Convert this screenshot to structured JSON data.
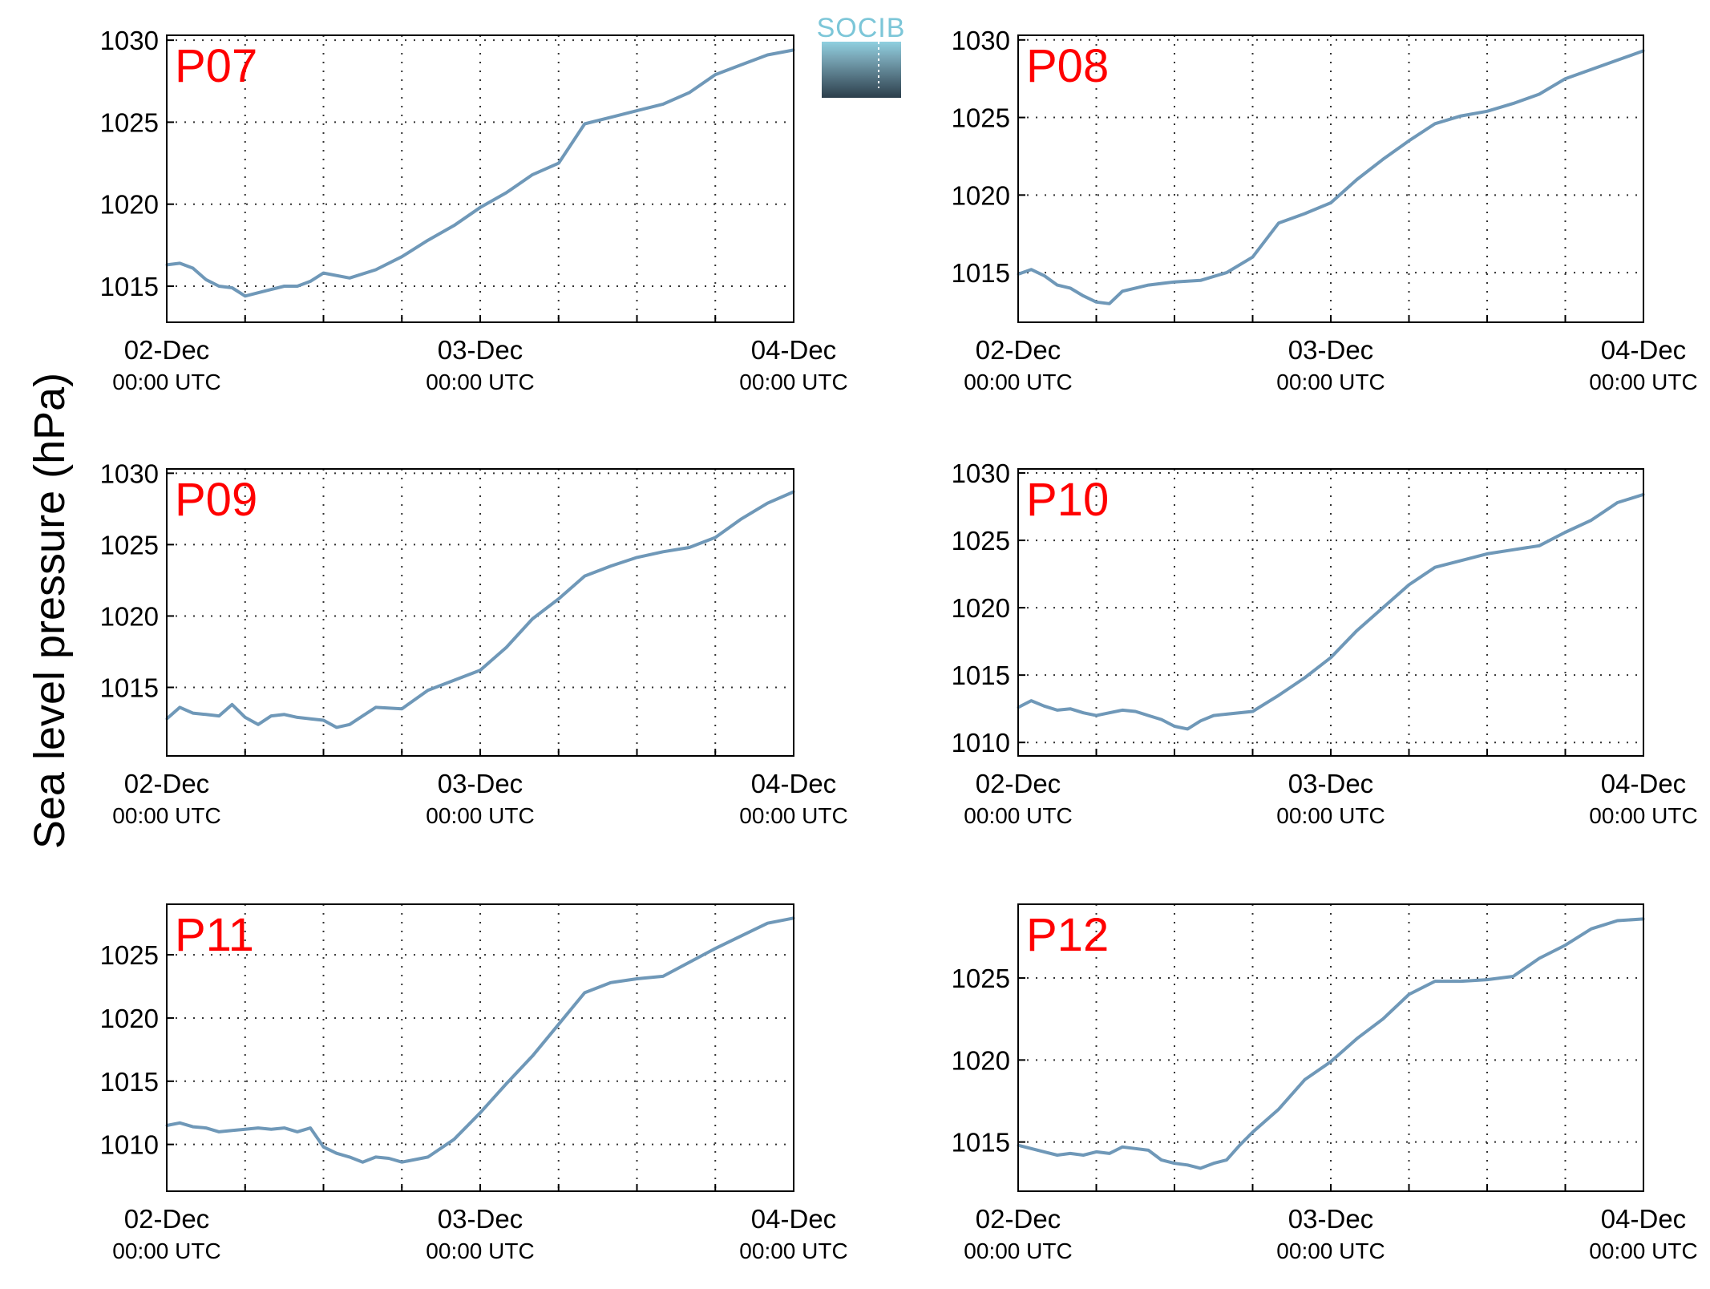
{
  "figure": {
    "ylabel": "Sea level pressure (hPa)",
    "logo_text": "SOCIB",
    "line_color": "#6f98b8",
    "panel_label_color": "#ff0000"
  },
  "chart_data": [
    {
      "type": "line",
      "panel_label": "P07",
      "x_ticks": [
        {
          "line1": "02-Dec",
          "line2": "00:00 UTC"
        },
        {
          "line1": "03-Dec",
          "line2": "00:00 UTC"
        },
        {
          "line1": "04-Dec",
          "line2": "00:00 UTC"
        }
      ],
      "x_range_hours": [
        0,
        48
      ],
      "y_ticks": [
        1015,
        1020,
        1025,
        1030
      ],
      "ylim": [
        1012.8,
        1030.3
      ],
      "grid": true,
      "series": [
        {
          "x_hours": [
            0,
            1,
            2,
            3,
            4,
            5,
            6,
            7,
            8,
            9,
            10,
            11,
            12,
            14,
            16,
            18,
            20,
            22,
            24,
            26,
            28,
            30,
            32,
            34,
            36,
            38,
            40,
            42,
            44,
            46,
            48
          ],
          "values": [
            1016.3,
            1016.4,
            1016.1,
            1015.4,
            1015.0,
            1014.9,
            1014.4,
            1014.6,
            1014.8,
            1015.0,
            1015.0,
            1015.3,
            1015.8,
            1015.5,
            1016.0,
            1016.8,
            1017.8,
            1018.7,
            1019.8,
            1020.7,
            1021.8,
            1022.5,
            1024.9,
            1025.3,
            1025.7,
            1026.1,
            1026.8,
            1027.9,
            1028.5,
            1029.1,
            1029.4
          ]
        }
      ]
    },
    {
      "type": "line",
      "panel_label": "P08",
      "x_ticks": [
        {
          "line1": "02-Dec",
          "line2": "00:00 UTC"
        },
        {
          "line1": "03-Dec",
          "line2": "00:00 UTC"
        },
        {
          "line1": "04-Dec",
          "line2": "00:00 UTC"
        }
      ],
      "x_range_hours": [
        0,
        48
      ],
      "y_ticks": [
        1015,
        1020,
        1025,
        1030
      ],
      "ylim": [
        1011.8,
        1030.3
      ],
      "grid": true,
      "series": [
        {
          "x_hours": [
            0,
            1,
            2,
            3,
            4,
            5,
            6,
            7,
            8,
            9,
            10,
            11,
            12,
            14,
            16,
            18,
            20,
            22,
            24,
            26,
            28,
            30,
            32,
            34,
            36,
            38,
            40,
            42,
            44,
            46,
            48
          ],
          "values": [
            1014.9,
            1015.2,
            1014.8,
            1014.2,
            1014.0,
            1013.5,
            1013.1,
            1013.0,
            1013.8,
            1014.0,
            1014.2,
            1014.3,
            1014.4,
            1014.5,
            1015.0,
            1016.0,
            1018.2,
            1018.8,
            1019.5,
            1021.0,
            1022.3,
            1023.5,
            1024.6,
            1025.1,
            1025.4,
            1025.9,
            1026.5,
            1027.5,
            1028.1,
            1028.7,
            1029.3
          ]
        }
      ]
    },
    {
      "type": "line",
      "panel_label": "P09",
      "x_ticks": [
        {
          "line1": "02-Dec",
          "line2": "00:00 UTC"
        },
        {
          "line1": "03-Dec",
          "line2": "00:00 UTC"
        },
        {
          "line1": "04-Dec",
          "line2": "00:00 UTC"
        }
      ],
      "x_range_hours": [
        0,
        48
      ],
      "y_ticks": [
        1015,
        1020,
        1025,
        1030
      ],
      "ylim": [
        1010.2,
        1030.3
      ],
      "grid": true,
      "series": [
        {
          "x_hours": [
            0,
            1,
            2,
            3,
            4,
            5,
            6,
            7,
            8,
            9,
            10,
            11,
            12,
            13,
            14,
            15,
            16,
            18,
            20,
            22,
            24,
            26,
            28,
            30,
            32,
            34,
            36,
            38,
            40,
            42,
            44,
            46,
            48
          ],
          "values": [
            1012.8,
            1013.6,
            1013.2,
            1013.1,
            1013.0,
            1013.8,
            1012.9,
            1012.4,
            1013.0,
            1013.1,
            1012.9,
            1012.8,
            1012.7,
            1012.2,
            1012.4,
            1013.0,
            1013.6,
            1013.5,
            1014.8,
            1015.5,
            1016.2,
            1017.8,
            1019.8,
            1021.2,
            1022.8,
            1023.5,
            1024.1,
            1024.5,
            1024.8,
            1025.5,
            1026.8,
            1027.9,
            1028.7
          ]
        }
      ]
    },
    {
      "type": "line",
      "panel_label": "P10",
      "x_ticks": [
        {
          "line1": "02-Dec",
          "line2": "00:00 UTC"
        },
        {
          "line1": "03-Dec",
          "line2": "00:00 UTC"
        },
        {
          "line1": "04-Dec",
          "line2": "00:00 UTC"
        }
      ],
      "x_range_hours": [
        0,
        48
      ],
      "y_ticks": [
        1010,
        1015,
        1020,
        1025,
        1030
      ],
      "ylim": [
        1009.0,
        1030.3
      ],
      "grid": true,
      "series": [
        {
          "x_hours": [
            0,
            1,
            2,
            3,
            4,
            5,
            6,
            7,
            8,
            9,
            10,
            11,
            12,
            13,
            14,
            15,
            16,
            18,
            20,
            22,
            24,
            26,
            28,
            30,
            32,
            34,
            36,
            38,
            40,
            42,
            44,
            46,
            48
          ],
          "values": [
            1012.6,
            1013.1,
            1012.7,
            1012.4,
            1012.5,
            1012.2,
            1012.0,
            1012.2,
            1012.4,
            1012.3,
            1012.0,
            1011.7,
            1011.2,
            1011.0,
            1011.6,
            1012.0,
            1012.1,
            1012.3,
            1013.5,
            1014.8,
            1016.3,
            1018.3,
            1020.0,
            1021.7,
            1023.0,
            1023.5,
            1024.0,
            1024.3,
            1024.6,
            1025.6,
            1026.5,
            1027.8,
            1028.4
          ]
        }
      ]
    },
    {
      "type": "line",
      "panel_label": "P11",
      "x_ticks": [
        {
          "line1": "02-Dec",
          "line2": "00:00 UTC"
        },
        {
          "line1": "03-Dec",
          "line2": "00:00 UTC"
        },
        {
          "line1": "04-Dec",
          "line2": "00:00 UTC"
        }
      ],
      "x_range_hours": [
        0,
        48
      ],
      "y_ticks": [
        1010,
        1015,
        1020,
        1025
      ],
      "ylim": [
        1006.3,
        1029.0
      ],
      "grid": true,
      "series": [
        {
          "x_hours": [
            0,
            1,
            2,
            3,
            4,
            5,
            6,
            7,
            8,
            9,
            10,
            11,
            12,
            13,
            14,
            15,
            16,
            17,
            18,
            20,
            22,
            24,
            26,
            28,
            30,
            32,
            34,
            36,
            38,
            40,
            42,
            44,
            46,
            48
          ],
          "values": [
            1011.5,
            1011.7,
            1011.4,
            1011.3,
            1011.0,
            1011.1,
            1011.2,
            1011.3,
            1011.2,
            1011.3,
            1011.0,
            1011.3,
            1009.8,
            1009.3,
            1009.0,
            1008.6,
            1009.0,
            1008.9,
            1008.6,
            1009.0,
            1010.4,
            1012.5,
            1014.8,
            1017.0,
            1019.5,
            1022.0,
            1022.8,
            1023.1,
            1023.3,
            1024.4,
            1025.5,
            1026.5,
            1027.5,
            1027.9
          ]
        }
      ]
    },
    {
      "type": "line",
      "panel_label": "P12",
      "x_ticks": [
        {
          "line1": "02-Dec",
          "line2": "00:00 UTC"
        },
        {
          "line1": "03-Dec",
          "line2": "00:00 UTC"
        },
        {
          "line1": "04-Dec",
          "line2": "00:00 UTC"
        }
      ],
      "x_range_hours": [
        0,
        48
      ],
      "y_ticks": [
        1015,
        1020,
        1025
      ],
      "ylim": [
        1012.0,
        1029.5
      ],
      "grid": true,
      "series": [
        {
          "x_hours": [
            0,
            1,
            2,
            3,
            4,
            5,
            6,
            7,
            8,
            9,
            10,
            11,
            12,
            13,
            14,
            15,
            16,
            17,
            18,
            20,
            22,
            24,
            26,
            28,
            30,
            32,
            34,
            36,
            38,
            40,
            42,
            44,
            46,
            48
          ],
          "values": [
            1014.8,
            1014.6,
            1014.4,
            1014.2,
            1014.3,
            1014.2,
            1014.4,
            1014.3,
            1014.7,
            1014.6,
            1014.5,
            1013.9,
            1013.7,
            1013.6,
            1013.4,
            1013.7,
            1013.9,
            1014.8,
            1015.6,
            1017.0,
            1018.8,
            1019.9,
            1021.3,
            1022.5,
            1024.0,
            1024.8,
            1024.8,
            1024.9,
            1025.1,
            1026.2,
            1027.0,
            1028.0,
            1028.5,
            1028.6
          ]
        }
      ]
    }
  ]
}
